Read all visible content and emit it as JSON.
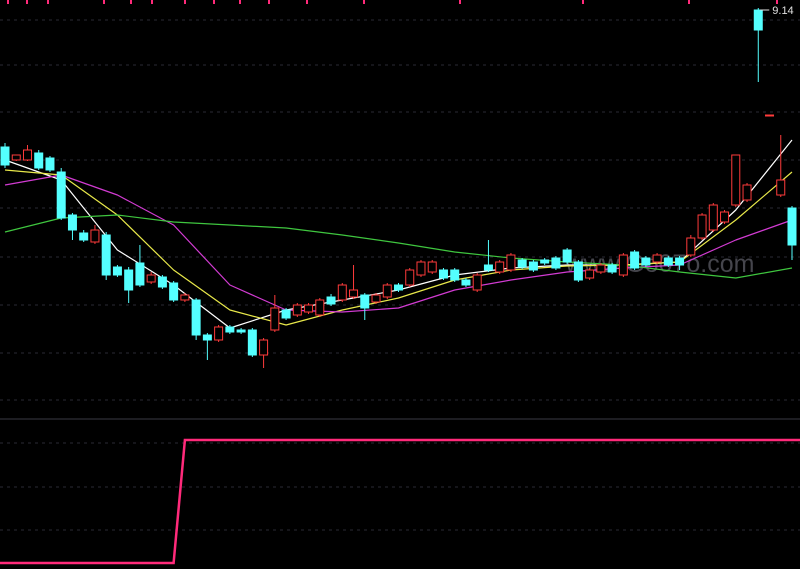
{
  "chart_data": {
    "type": "candlestick",
    "watermark": "www.Go07o.com",
    "up_color": "#ff3b3b",
    "down_color": "#54ffff",
    "ylim": [
      5.12,
      9.22
    ],
    "ohlc": [
      [
        7.75,
        7.79,
        7.54,
        7.57
      ],
      [
        7.62,
        7.67,
        7.61,
        7.67
      ],
      [
        7.62,
        7.77,
        7.61,
        7.72
      ],
      [
        7.69,
        7.72,
        7.52,
        7.54
      ],
      [
        7.64,
        7.66,
        7.5,
        7.52
      ],
      [
        7.5,
        7.54,
        7.02,
        7.04
      ],
      [
        7.07,
        7.09,
        6.82,
        6.92
      ],
      [
        6.89,
        6.92,
        6.8,
        6.82
      ],
      [
        6.8,
        6.97,
        6.78,
        6.92
      ],
      [
        6.87,
        6.9,
        6.42,
        6.47
      ],
      [
        6.55,
        6.57,
        6.45,
        6.47
      ],
      [
        6.52,
        6.55,
        6.19,
        6.32
      ],
      [
        6.59,
        6.77,
        6.35,
        6.37
      ],
      [
        6.4,
        6.5,
        6.38,
        6.47
      ],
      [
        6.45,
        6.47,
        6.33,
        6.35
      ],
      [
        6.39,
        6.41,
        6.2,
        6.22
      ],
      [
        6.22,
        6.29,
        6.2,
        6.27
      ],
      [
        6.22,
        6.24,
        5.82,
        5.87
      ],
      [
        5.87,
        5.89,
        5.62,
        5.82
      ],
      [
        5.82,
        5.97,
        5.8,
        5.95
      ],
      [
        5.95,
        5.97,
        5.88,
        5.9
      ],
      [
        5.92,
        5.94,
        5.88,
        5.9
      ],
      [
        5.92,
        5.94,
        5.65,
        5.67
      ],
      [
        5.67,
        5.84,
        5.54,
        5.82
      ],
      [
        5.92,
        6.27,
        5.9,
        6.14
      ],
      [
        6.12,
        6.14,
        6.02,
        6.04
      ],
      [
        6.07,
        6.19,
        6.05,
        6.17
      ],
      [
        6.1,
        6.19,
        6.08,
        6.17
      ],
      [
        6.07,
        6.24,
        6.05,
        6.22
      ],
      [
        6.25,
        6.28,
        6.16,
        6.18
      ],
      [
        6.22,
        6.39,
        6.2,
        6.37
      ],
      [
        6.25,
        6.57,
        6.23,
        6.32
      ],
      [
        6.27,
        6.29,
        6.02,
        6.14
      ],
      [
        6.2,
        6.29,
        6.18,
        6.27
      ],
      [
        6.25,
        6.39,
        6.23,
        6.37
      ],
      [
        6.37,
        6.39,
        6.3,
        6.32
      ],
      [
        6.37,
        6.54,
        6.35,
        6.52
      ],
      [
        6.47,
        6.62,
        6.45,
        6.6
      ],
      [
        6.5,
        6.62,
        6.48,
        6.6
      ],
      [
        6.52,
        6.54,
        6.42,
        6.44
      ],
      [
        6.52,
        6.54,
        6.4,
        6.42
      ],
      [
        6.42,
        6.44,
        6.35,
        6.37
      ],
      [
        6.32,
        6.49,
        6.3,
        6.47
      ],
      [
        6.57,
        6.82,
        6.5,
        6.52
      ],
      [
        6.5,
        6.62,
        6.48,
        6.6
      ],
      [
        6.52,
        6.69,
        6.5,
        6.67
      ],
      [
        6.62,
        6.64,
        6.53,
        6.55
      ],
      [
        6.6,
        6.62,
        6.5,
        6.52
      ],
      [
        6.62,
        6.64,
        6.57,
        6.59
      ],
      [
        6.64,
        6.66,
        6.52,
        6.54
      ],
      [
        6.72,
        6.74,
        6.58,
        6.6
      ],
      [
        6.6,
        6.62,
        6.4,
        6.42
      ],
      [
        6.44,
        6.54,
        6.42,
        6.52
      ],
      [
        6.5,
        6.59,
        6.48,
        6.57
      ],
      [
        6.57,
        6.59,
        6.48,
        6.5
      ],
      [
        6.47,
        6.69,
        6.45,
        6.67
      ],
      [
        6.7,
        6.72,
        6.52,
        6.54
      ],
      [
        6.64,
        6.66,
        6.55,
        6.57
      ],
      [
        6.6,
        6.69,
        6.58,
        6.67
      ],
      [
        6.64,
        6.66,
        6.55,
        6.57
      ],
      [
        6.64,
        6.66,
        6.52,
        6.57
      ],
      [
        6.67,
        6.87,
        6.65,
        6.84
      ],
      [
        6.84,
        7.09,
        6.82,
        7.07
      ],
      [
        6.92,
        7.19,
        6.9,
        7.17
      ],
      [
        7.0,
        7.12,
        6.98,
        7.1
      ],
      [
        7.17,
        7.67,
        7.15,
        7.67
      ],
      [
        7.22,
        7.39,
        7.2,
        7.37
      ],
      [
        9.12,
        9.14,
        8.4,
        8.92
      ],
      [
        8.07,
        8.07,
        8.07,
        8.07
      ],
      [
        7.27,
        7.87,
        7.25,
        7.42
      ],
      [
        7.14,
        7.16,
        6.62,
        6.77
      ]
    ],
    "series": [
      {
        "color": "#ffffff",
        "x": [
          0,
          5,
          10,
          15,
          20,
          25,
          30,
          35,
          40,
          45,
          50,
          55,
          60,
          65,
          70
        ],
        "values": [
          7.62,
          7.42,
          6.72,
          6.37,
          5.94,
          6.12,
          6.22,
          6.32,
          6.47,
          6.54,
          6.57,
          6.57,
          6.6,
          7.12,
          7.82
        ]
      },
      {
        "color": "#e8e84a",
        "x": [
          0,
          5,
          10,
          15,
          20,
          25,
          30,
          35,
          40,
          45,
          50,
          55,
          60,
          65,
          70
        ],
        "values": [
          7.52,
          7.47,
          7.07,
          6.52,
          6.12,
          5.97,
          6.12,
          6.24,
          6.42,
          6.52,
          6.56,
          6.57,
          6.6,
          7.02,
          7.5
        ]
      },
      {
        "color": "#d23bd2",
        "x": [
          0,
          5,
          10,
          15,
          20,
          25,
          30,
          35,
          40,
          45,
          50,
          55,
          60,
          65,
          70
        ],
        "values": [
          7.37,
          7.47,
          7.27,
          6.97,
          6.37,
          6.12,
          6.1,
          6.14,
          6.32,
          6.42,
          6.5,
          6.54,
          6.57,
          6.82,
          7.02
        ]
      },
      {
        "color": "#3fc63f",
        "x": [
          0,
          5,
          10,
          15,
          20,
          25,
          30,
          35,
          40,
          45,
          50,
          55,
          60,
          65,
          70
        ],
        "values": [
          6.9,
          7.04,
          7.07,
          7.0,
          6.97,
          6.94,
          6.87,
          6.79,
          6.7,
          6.64,
          6.6,
          6.57,
          6.5,
          6.44,
          6.54
        ]
      }
    ],
    "indicator": {
      "color": "#ff2a7a",
      "values": [
        0,
        0,
        0,
        0,
        0,
        0,
        0,
        0,
        0,
        0,
        0,
        0,
        0,
        0,
        0,
        0,
        1,
        1,
        1,
        1,
        1,
        1,
        1,
        1,
        1,
        1,
        1,
        1,
        1,
        1,
        1,
        1,
        1,
        1,
        1,
        1,
        1,
        1,
        1,
        1,
        1,
        1,
        1,
        1,
        1,
        1,
        1,
        1,
        1,
        1,
        1,
        1,
        1,
        1,
        1,
        1,
        1,
        1,
        1,
        1,
        1,
        1,
        1,
        1,
        1,
        1,
        1,
        1,
        1,
        1,
        1
      ]
    }
  }
}
